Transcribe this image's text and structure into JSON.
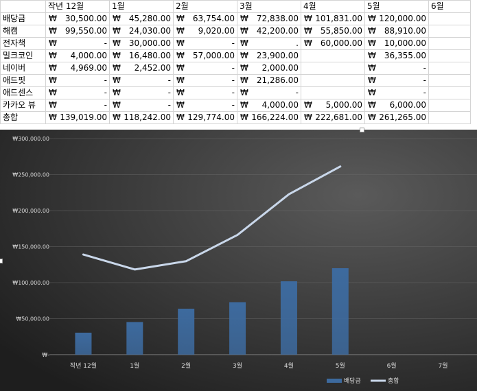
{
  "table": {
    "header": [
      "",
      "작년 12월",
      "1월",
      "2월",
      "3월",
      "4월",
      "5월",
      "6월"
    ],
    "currency_symbol": "₩",
    "rows": [
      {
        "label": "배당금",
        "cells": [
          "30,500.00",
          "45,280.00",
          "63,754.00",
          "72,838.00",
          "101,831.00",
          "120,000.00",
          null
        ]
      },
      {
        "label": "해캠",
        "cells": [
          "99,550.00",
          "24,030.00",
          "9,020.00",
          "42,200.00",
          "55,850.00",
          "88,910.00",
          null
        ]
      },
      {
        "label": "전자책",
        "cells": [
          "-",
          "30,000.00",
          "-",
          ".",
          "60,000.00",
          "10,000.00",
          null
        ]
      },
      {
        "label": "밀크코인",
        "cells": [
          "4,000.00",
          "16,480.00",
          "57,000.00",
          "23,900.00",
          null,
          "36,355.00",
          null
        ]
      },
      {
        "label": "네이버",
        "cells": [
          "4,969.00",
          "2,452.00",
          "-",
          "2,000.00",
          null,
          "-",
          null
        ]
      },
      {
        "label": "애드핏",
        "cells": [
          "-",
          "-",
          "-",
          "21,286.00",
          null,
          "-",
          null
        ]
      },
      {
        "label": "애드센스",
        "cells": [
          "-",
          "-",
          "-",
          "-",
          null,
          "-",
          null
        ]
      },
      {
        "label": "카카오 뷰",
        "cells": [
          "-",
          "-",
          "-",
          "4,000.00",
          "5,000.00",
          "6,000.00",
          null
        ]
      },
      {
        "label": "총합",
        "cells": [
          "139,019.00",
          "118,242.00",
          "129,774.00",
          "166,224.00",
          "222,681.00",
          "261,265.00",
          null
        ]
      }
    ]
  },
  "chart_data": {
    "type": "bar",
    "categories": [
      "작년 12월",
      "1월",
      "2월",
      "3월",
      "4월",
      "5월",
      "6월",
      "7월"
    ],
    "series": [
      {
        "name": "배당금",
        "type": "bar",
        "values": [
          30500,
          45280,
          63754,
          72838,
          101831,
          120000,
          null,
          null
        ]
      },
      {
        "name": "총합",
        "type": "line",
        "values": [
          139019,
          118242,
          129774,
          166224,
          222681,
          261265,
          null,
          null
        ]
      }
    ],
    "ylim": [
      0,
      300000
    ],
    "yticks": [
      0,
      50000,
      100000,
      150000,
      200000,
      250000,
      300000
    ],
    "ytick_labels": [
      "₩-",
      "₩50,000.00",
      "₩100,000.00",
      "₩150,000.00",
      "₩200,000.00",
      "₩250,000.00",
      "₩300,000.00"
    ],
    "grid": true,
    "legend": "bottom-right",
    "colors": {
      "bar": "#3d6a9e",
      "line": "#c9d7ea",
      "background_dark": "#1e1e1e",
      "background_light": "#5a5a5a"
    }
  }
}
